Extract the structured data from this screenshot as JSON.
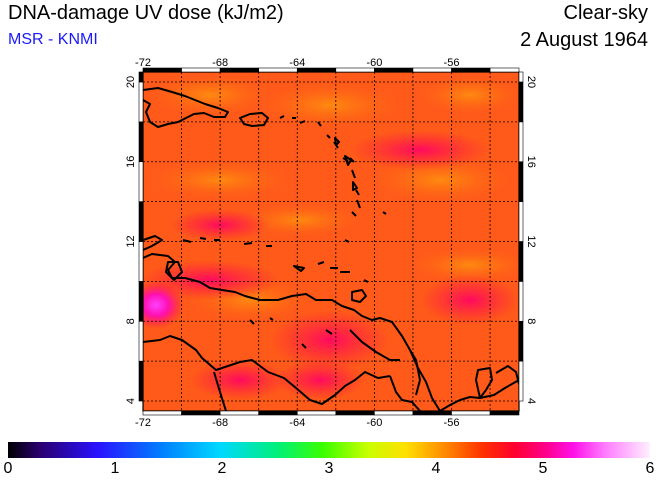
{
  "header": {
    "title": "DNA-damage UV dose (kJ/m2)",
    "source": "MSR - KNMI",
    "sky_condition": "Clear-sky",
    "date": "2 August 1964"
  },
  "map": {
    "lon_ticks": [
      "-72",
      "-68",
      "-64",
      "-60",
      "-56"
    ],
    "lat_ticks": [
      "4",
      "8",
      "12",
      "16",
      "20"
    ],
    "lon_range": [
      -72,
      -52.5
    ],
    "lat_range": [
      3.5,
      20.5
    ],
    "grid": true
  },
  "colorbar": {
    "labels": [
      "0",
      "1",
      "2",
      "3",
      "4",
      "5",
      "6"
    ],
    "range": [
      0,
      6
    ]
  }
}
